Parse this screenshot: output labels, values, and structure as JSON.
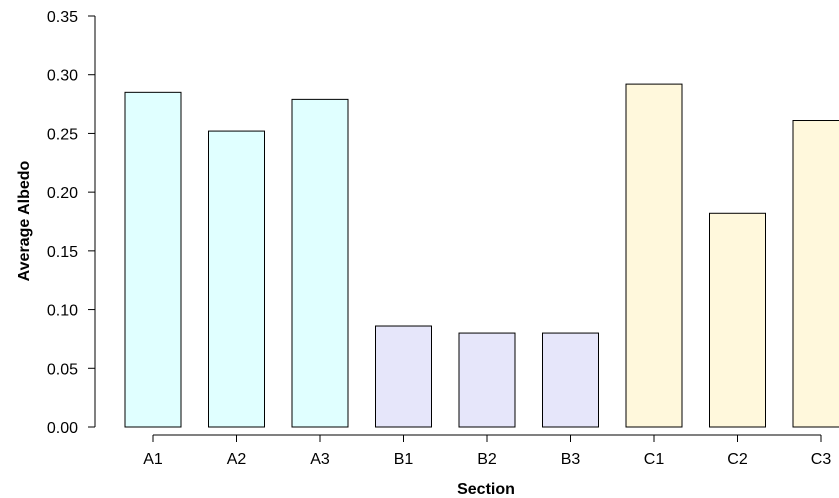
{
  "chart_data": {
    "type": "bar",
    "title": "",
    "xlabel": "Section",
    "ylabel": "Average Albedo",
    "categories": [
      "A1",
      "A2",
      "A3",
      "B1",
      "B2",
      "B3",
      "C1",
      "C2",
      "C3"
    ],
    "values": [
      0.285,
      0.252,
      0.279,
      0.086,
      0.08,
      0.08,
      0.292,
      0.182,
      0.261
    ],
    "bar_colors": [
      "#e0ffff",
      "#e0ffff",
      "#e0ffff",
      "#e6e6fa",
      "#e6e6fa",
      "#e6e6fa",
      "#fff8dc",
      "#fff8dc",
      "#fff8dc"
    ],
    "ylim": [
      0,
      0.35
    ],
    "yticks": [
      "0.00",
      "0.05",
      "0.10",
      "0.15",
      "0.20",
      "0.25",
      "0.30",
      "0.35"
    ],
    "grid": false,
    "legend": "none"
  }
}
